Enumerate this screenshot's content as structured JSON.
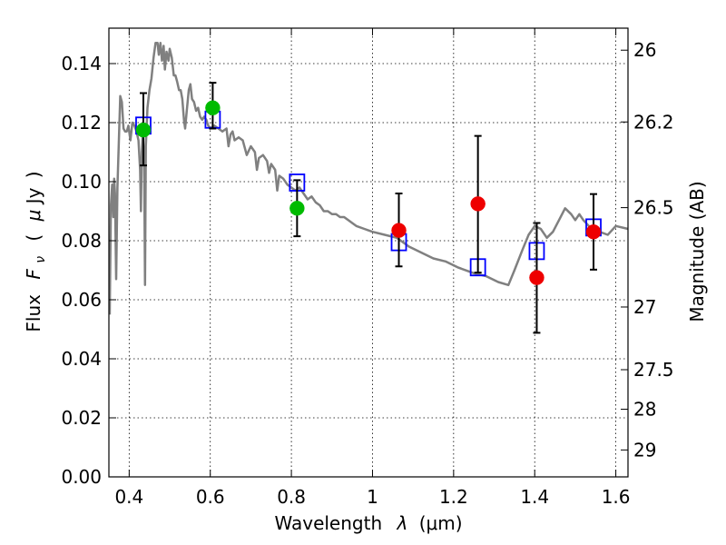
{
  "chart_data": {
    "type": "scatter",
    "xlabel_prefix": "Wavelength",
    "xlabel_symbol": "λ",
    "xlabel_unit": "(μm)",
    "ylabel_prefix": "Flux",
    "ylabel_symbol_main": "F",
    "ylabel_symbol_sub": "ν",
    "ylabel_unit_open": "(",
    "ylabel_unit_mu": "μ",
    "ylabel_unit_rest": "Jy",
    "ylabel_unit_close": ")",
    "y2label": "Magnitude (AB)",
    "xlim": [
      0.35,
      1.63
    ],
    "ylim": [
      0.0,
      0.152
    ],
    "grid": true,
    "x_ticks": [
      0.4,
      0.6,
      0.8,
      1.0,
      1.2,
      1.4,
      1.6
    ],
    "x_tick_labels": [
      "0.4",
      "0.6",
      "0.8",
      "1",
      "1.2",
      "1.4",
      "1.6"
    ],
    "y_ticks": [
      0.0,
      0.02,
      0.04,
      0.06,
      0.08,
      0.1,
      0.12,
      0.14
    ],
    "y_tick_labels": [
      "0.00",
      "0.02",
      "0.04",
      "0.06",
      "0.08",
      "0.10",
      "0.12",
      "0.14"
    ],
    "y2_ticks": [
      26,
      26.2,
      26.5,
      27,
      27.5,
      28,
      29
    ],
    "y2_tick_labels": [
      "26",
      "26.2",
      "26.5",
      "27",
      "27.5",
      "28",
      "29"
    ],
    "colors": {
      "model": "#808080",
      "model_photometry": "#0000ff",
      "detection_green": "#00bb00",
      "detection_red": "#ee0000",
      "errorbar": "#000000"
    },
    "model_spectrum": [
      [
        0.352,
        0.055
      ],
      [
        0.355,
        0.092
      ],
      [
        0.358,
        0.099
      ],
      [
        0.361,
        0.088
      ],
      [
        0.363,
        0.101
      ],
      [
        0.365,
        0.096
      ],
      [
        0.368,
        0.067
      ],
      [
        0.371,
        0.098
      ],
      [
        0.375,
        0.116
      ],
      [
        0.378,
        0.129
      ],
      [
        0.382,
        0.127
      ],
      [
        0.386,
        0.118
      ],
      [
        0.39,
        0.117
      ],
      [
        0.394,
        0.117
      ],
      [
        0.398,
        0.119
      ],
      [
        0.403,
        0.114
      ],
      [
        0.408,
        0.12
      ],
      [
        0.413,
        0.119
      ],
      [
        0.418,
        0.117
      ],
      [
        0.423,
        0.114
      ],
      [
        0.427,
        0.104
      ],
      [
        0.429,
        0.09
      ],
      [
        0.431,
        0.11
      ],
      [
        0.434,
        0.118
      ],
      [
        0.437,
        0.106
      ],
      [
        0.439,
        0.065
      ],
      [
        0.441,
        0.112
      ],
      [
        0.445,
        0.125
      ],
      [
        0.45,
        0.131
      ],
      [
        0.455,
        0.135
      ],
      [
        0.46,
        0.142
      ],
      [
        0.465,
        0.147
      ],
      [
        0.47,
        0.147
      ],
      [
        0.473,
        0.143
      ],
      [
        0.477,
        0.147
      ],
      [
        0.481,
        0.141
      ],
      [
        0.485,
        0.146
      ],
      [
        0.488,
        0.138
      ],
      [
        0.492,
        0.144
      ],
      [
        0.497,
        0.141
      ],
      [
        0.5,
        0.145
      ],
      [
        0.505,
        0.142
      ],
      [
        0.51,
        0.136
      ],
      [
        0.514,
        0.136
      ],
      [
        0.518,
        0.134
      ],
      [
        0.523,
        0.131
      ],
      [
        0.527,
        0.131
      ],
      [
        0.531,
        0.128
      ],
      [
        0.535,
        0.121
      ],
      [
        0.538,
        0.118
      ],
      [
        0.542,
        0.124
      ],
      [
        0.547,
        0.131
      ],
      [
        0.551,
        0.133
      ],
      [
        0.555,
        0.128
      ],
      [
        0.56,
        0.127
      ],
      [
        0.565,
        0.124
      ],
      [
        0.57,
        0.125
      ],
      [
        0.575,
        0.122
      ],
      [
        0.58,
        0.121
      ],
      [
        0.585,
        0.122
      ],
      [
        0.59,
        0.121
      ],
      [
        0.595,
        0.119
      ],
      [
        0.6,
        0.118
      ],
      [
        0.61,
        0.119
      ],
      [
        0.62,
        0.118
      ],
      [
        0.63,
        0.117
      ],
      [
        0.64,
        0.118
      ],
      [
        0.645,
        0.112
      ],
      [
        0.65,
        0.116
      ],
      [
        0.655,
        0.117
      ],
      [
        0.66,
        0.114
      ],
      [
        0.67,
        0.115
      ],
      [
        0.68,
        0.114
      ],
      [
        0.69,
        0.109
      ],
      [
        0.7,
        0.112
      ],
      [
        0.71,
        0.11
      ],
      [
        0.715,
        0.104
      ],
      [
        0.72,
        0.108
      ],
      [
        0.73,
        0.109
      ],
      [
        0.74,
        0.107
      ],
      [
        0.745,
        0.103
      ],
      [
        0.75,
        0.106
      ],
      [
        0.76,
        0.104
      ],
      [
        0.765,
        0.097
      ],
      [
        0.77,
        0.102
      ],
      [
        0.78,
        0.101
      ],
      [
        0.79,
        0.099
      ],
      [
        0.8,
        0.098
      ],
      [
        0.81,
        0.097
      ],
      [
        0.82,
        0.098
      ],
      [
        0.83,
        0.096
      ],
      [
        0.84,
        0.094
      ],
      [
        0.85,
        0.095
      ],
      [
        0.86,
        0.093
      ],
      [
        0.87,
        0.092
      ],
      [
        0.88,
        0.09
      ],
      [
        0.89,
        0.09
      ],
      [
        0.9,
        0.089
      ],
      [
        0.91,
        0.089
      ],
      [
        0.92,
        0.088
      ],
      [
        0.93,
        0.088
      ],
      [
        0.94,
        0.087
      ],
      [
        0.95,
        0.086
      ],
      [
        0.96,
        0.085
      ],
      [
        0.98,
        0.084
      ],
      [
        1.0,
        0.083
      ],
      [
        1.03,
        0.082
      ],
      [
        1.06,
        0.081
      ],
      [
        1.09,
        0.078
      ],
      [
        1.12,
        0.076
      ],
      [
        1.15,
        0.074
      ],
      [
        1.18,
        0.073
      ],
      [
        1.21,
        0.071
      ],
      [
        1.25,
        0.069
      ],
      [
        1.28,
        0.068
      ],
      [
        1.31,
        0.066
      ],
      [
        1.335,
        0.065
      ],
      [
        1.35,
        0.07
      ],
      [
        1.37,
        0.077
      ],
      [
        1.385,
        0.082
      ],
      [
        1.4,
        0.085
      ],
      [
        1.415,
        0.084
      ],
      [
        1.43,
        0.081
      ],
      [
        1.445,
        0.083
      ],
      [
        1.46,
        0.087
      ],
      [
        1.475,
        0.091
      ],
      [
        1.49,
        0.089
      ],
      [
        1.5,
        0.087
      ],
      [
        1.51,
        0.089
      ],
      [
        1.52,
        0.087
      ],
      [
        1.54,
        0.084
      ],
      [
        1.56,
        0.083
      ],
      [
        1.58,
        0.082
      ],
      [
        1.6,
        0.085
      ],
      [
        1.63,
        0.084
      ]
    ],
    "model_photometry": [
      {
        "x": 0.435,
        "y": 0.119
      },
      {
        "x": 0.606,
        "y": 0.121
      },
      {
        "x": 0.814,
        "y": 0.0997
      },
      {
        "x": 1.065,
        "y": 0.0795
      },
      {
        "x": 1.26,
        "y": 0.071
      },
      {
        "x": 1.405,
        "y": 0.0765
      },
      {
        "x": 1.545,
        "y": 0.0845
      }
    ],
    "observed": [
      {
        "x": 0.435,
        "y": 0.1175,
        "yerr_low": 0.1055,
        "yerr_high": 0.13,
        "color": "green"
      },
      {
        "x": 0.606,
        "y": 0.125,
        "yerr_low": 0.118,
        "yerr_high": 0.1335,
        "color": "green"
      },
      {
        "x": 0.814,
        "y": 0.091,
        "yerr_low": 0.0815,
        "yerr_high": 0.1005,
        "color": "green"
      },
      {
        "x": 1.065,
        "y": 0.0835,
        "yerr_low": 0.0713,
        "yerr_high": 0.096,
        "color": "red"
      },
      {
        "x": 1.26,
        "y": 0.0925,
        "yerr_low": 0.0692,
        "yerr_high": 0.1155,
        "color": "red"
      },
      {
        "x": 1.405,
        "y": 0.0675,
        "yerr_low": 0.0488,
        "yerr_high": 0.086,
        "color": "red"
      },
      {
        "x": 1.545,
        "y": 0.083,
        "yerr_low": 0.0702,
        "yerr_high": 0.0958,
        "color": "red"
      }
    ]
  }
}
